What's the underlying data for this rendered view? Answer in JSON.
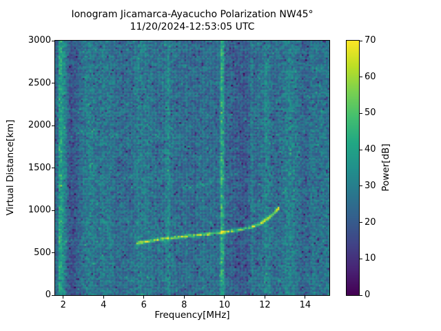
{
  "window": {
    "background": "#ffffff"
  },
  "chart_data": {
    "type": "heatmap",
    "title": "Ionogram Jicamarca-Ayacucho Polarization NW45°",
    "subtitle": "11/20/2024-12:53:05 UTC",
    "xlabel": "Frequency[MHz]",
    "ylabel": "Virtual Distance[km]",
    "colorbar_label": "Power[dB]",
    "colormap": "viridis",
    "xlim": [
      1.6,
      15.2
    ],
    "ylim": [
      0,
      3000
    ],
    "power_range_db": [
      0,
      70
    ],
    "x_ticks": [
      2,
      4,
      6,
      8,
      10,
      12,
      14
    ],
    "y_ticks": [
      0,
      500,
      1000,
      1500,
      2000,
      2500,
      3000
    ],
    "colorbar_ticks": [
      0,
      10,
      20,
      30,
      40,
      50,
      60,
      70
    ],
    "noise_background": {
      "mean_db": 25,
      "spread_db": 8,
      "dark_speckle_fraction": 0.07,
      "bright_speckle_fraction": 0.03
    },
    "column_variation_db": 4,
    "rfi_stripes": [
      {
        "freq_mhz": 1.85,
        "boost_db": 22,
        "width_mhz": 0.06
      },
      {
        "freq_mhz": 2.0,
        "boost_db": 13,
        "width_mhz": 0.06
      },
      {
        "freq_mhz": 2.14,
        "boost_db": 9,
        "width_mhz": 0.06
      },
      {
        "freq_mhz": 2.6,
        "boost_db": -2.5,
        "width_mhz": 0.3
      },
      {
        "freq_mhz": 3.35,
        "boost_db": 4,
        "width_mhz": 0.35
      },
      {
        "freq_mhz": 4.0,
        "boost_db": 4,
        "width_mhz": 0.12
      },
      {
        "freq_mhz": 4.35,
        "boost_db": 4,
        "width_mhz": 0.1
      },
      {
        "freq_mhz": 5.15,
        "boost_db": 3,
        "width_mhz": 0.25
      },
      {
        "freq_mhz": 5.75,
        "boost_db": 3,
        "width_mhz": 0.15
      },
      {
        "freq_mhz": 6.5,
        "boost_db": -2,
        "width_mhz": 0.5
      },
      {
        "freq_mhz": 7.2,
        "boost_db": 7,
        "width_mhz": 0.07
      },
      {
        "freq_mhz": 8.1,
        "boost_db": 3,
        "width_mhz": 0.2
      },
      {
        "freq_mhz": 9.88,
        "boost_db": 22,
        "width_mhz": 0.07
      },
      {
        "freq_mhz": 10.5,
        "boost_db": -2,
        "width_mhz": 0.4
      },
      {
        "freq_mhz": 11.35,
        "boost_db": 6,
        "width_mhz": 0.07
      },
      {
        "freq_mhz": 12.1,
        "boost_db": 5,
        "width_mhz": 0.1
      },
      {
        "freq_mhz": 12.6,
        "boost_db": -2.5,
        "width_mhz": 0.35
      },
      {
        "freq_mhz": 13.3,
        "boost_db": 3.5,
        "width_mhz": 0.25
      },
      {
        "freq_mhz": 14.35,
        "boost_db": 3,
        "width_mhz": 0.12
      }
    ],
    "echo_trace": {
      "points_freq_km": [
        [
          5.7,
          612
        ],
        [
          6.3,
          640
        ],
        [
          7.1,
          668
        ],
        [
          8.0,
          692
        ],
        [
          9.0,
          715
        ],
        [
          9.9,
          738
        ],
        [
          10.7,
          768
        ],
        [
          11.3,
          800
        ],
        [
          11.8,
          845
        ],
        [
          12.2,
          912
        ],
        [
          12.45,
          960
        ],
        [
          12.6,
          1005
        ],
        [
          12.7,
          1030
        ]
      ],
      "peak_boost_db": 34,
      "sigma_km": 16,
      "bright_band_freq_mhz": [
        7.6,
        10.7
      ],
      "bright_band_extra_db": 7
    },
    "second_hop_echo": {
      "points_freq_km": [
        [
          7.9,
          1245
        ],
        [
          8.8,
          1300
        ],
        [
          9.9,
          1365
        ],
        [
          10.6,
          1425
        ]
      ],
      "peak_boost_db": 8,
      "sigma_km": 20
    },
    "viridis_anchors": [
      [
        0,
        "#440154"
      ],
      [
        0.1,
        "#482475"
      ],
      [
        0.2,
        "#414487"
      ],
      [
        0.3,
        "#355f8d"
      ],
      [
        0.4,
        "#2a788e"
      ],
      [
        0.5,
        "#21918c"
      ],
      [
        0.6,
        "#22a884"
      ],
      [
        0.7,
        "#44bf70"
      ],
      [
        0.8,
        "#7ad151"
      ],
      [
        0.9,
        "#bddf26"
      ],
      [
        1,
        "#fde725"
      ]
    ]
  }
}
